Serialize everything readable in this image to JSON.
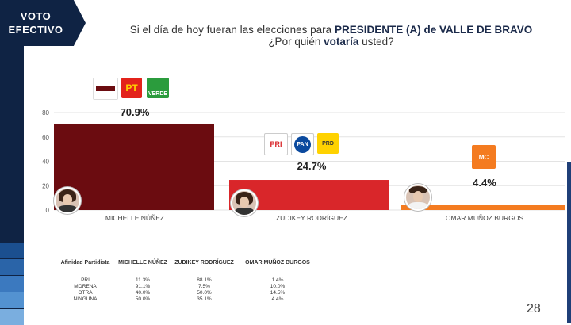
{
  "badge": {
    "line1": "VOTO",
    "line2": "EFECTIVO"
  },
  "question": {
    "part1": "Si el día de hoy fueran las elecciones para ",
    "bold1": "PRESIDENTE (A) de  VALLE DE BRAVO",
    "part2": "¿Por quién ",
    "bold2": "votaría",
    "part3": " usted?"
  },
  "chart_data": {
    "type": "bar",
    "categories": [
      "MICHELLE NÚÑEZ",
      "ZUDIKEY RODRÍGUEZ",
      "OMAR MUÑOZ BURGOS"
    ],
    "values": [
      70.9,
      24.7,
      4.4
    ],
    "value_labels": [
      "70.9%",
      "24.7%",
      "4.4%"
    ],
    "colors": [
      "#6b0c10",
      "#d9262a",
      "#f47b20"
    ],
    "ylim": [
      0,
      80
    ],
    "yticks": [
      0,
      20,
      40,
      60,
      80
    ],
    "grid": true,
    "party_logos": [
      [
        "MORENA",
        "PT",
        "VERDE"
      ],
      [
        "PRI",
        "PAN",
        "PRD"
      ],
      [
        "MC"
      ]
    ],
    "table": {
      "header": [
        "Afinidad Partidista",
        "MICHELLE NÚÑEZ",
        "ZUDIKEY RODRÍGUEZ",
        "OMAR MUÑOZ BURGOS"
      ],
      "rows": [
        [
          "PRI",
          "11.3%",
          "88.1%",
          "1.4%"
        ],
        [
          "MORENA",
          "91.1%",
          "7.5%",
          "10.0%"
        ],
        [
          "OTRA",
          "40.0%",
          "50.0%",
          "14.5%"
        ],
        [
          "NINGUNA",
          "50.0%",
          "35.1%",
          "4.4%"
        ]
      ]
    }
  },
  "colors": {
    "navy": "#0f2344",
    "morena": "#6b0c10",
    "pri_red": "#d9262a",
    "mc_orange": "#f47b20"
  },
  "page_number": "28"
}
